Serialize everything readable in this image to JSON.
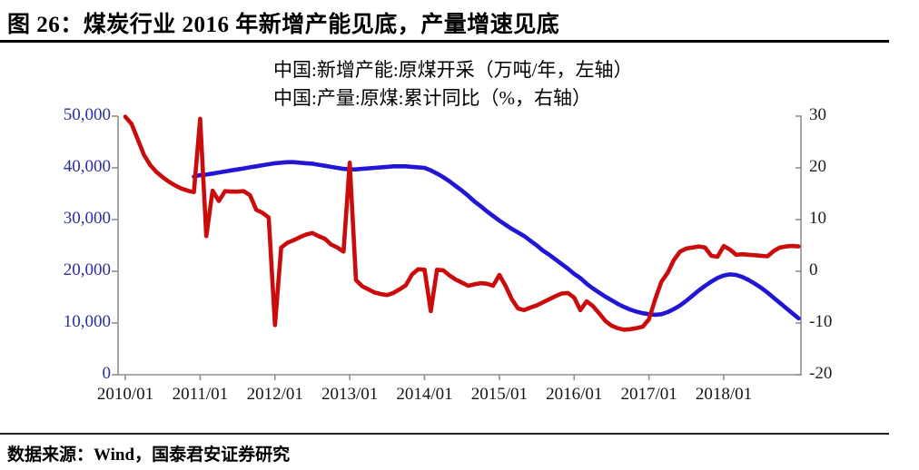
{
  "title": "图 26：煤炭行业 2016 年新增产能见底，产量增速见底",
  "source": "数据来源：Wind，国泰君安证券研究",
  "colors": {
    "capacity_line": "#2215d6",
    "output_line": "#cb0c0c",
    "axis": "#8f8f8f",
    "left_axis_labels": "#2b2f9e",
    "right_axis_labels": "#1c1c1c"
  },
  "legend": [
    {
      "label": "中国:新增产能:原煤开采（万吨/年，左轴）",
      "color": "#2215d6"
    },
    {
      "label": "中国:产量:原煤:累计同比（%，右轴）",
      "color": "#cb0c0c"
    }
  ],
  "chart_data": {
    "type": "line",
    "title": "煤炭行业2016年新增产能见底，产量增速见底",
    "x_unit": "month",
    "x_start": "2010/01",
    "x_end": "2019/01",
    "x_tick_labels": [
      "2010/01",
      "2011/01",
      "2012/01",
      "2013/01",
      "2014/01",
      "2015/01",
      "2016/01",
      "2017/01",
      "2018/01"
    ],
    "left_axis": {
      "min": 0,
      "max": 50000,
      "tick_labels": [
        "50,000",
        "40,000",
        "30,000",
        "20,000",
        "10,000",
        "0"
      ]
    },
    "right_axis": {
      "min": -20,
      "max": 30,
      "tick_labels": [
        "30",
        "20",
        "10",
        "0",
        "-10",
        "-20"
      ]
    },
    "grid": false,
    "legend_position": "top-center",
    "series": [
      {
        "name": "中国:新增产能:原煤开采（万吨/年，左轴）",
        "axis": "left",
        "color": "#2215d6",
        "values": [
          null,
          null,
          null,
          null,
          null,
          null,
          null,
          null,
          null,
          null,
          null,
          38300,
          38600,
          38700,
          38900,
          39100,
          39300,
          39500,
          39700,
          39900,
          40100,
          40300,
          40500,
          40700,
          40900,
          41000,
          41100,
          41100,
          41000,
          40900,
          40800,
          40600,
          40400,
          40200,
          40000,
          39800,
          39700,
          39700,
          39800,
          39900,
          40000,
          40100,
          40200,
          40300,
          40300,
          40300,
          40200,
          40100,
          40000,
          39500,
          38900,
          38200,
          37400,
          36500,
          35600,
          34600,
          33500,
          32600,
          31600,
          30700,
          29800,
          29000,
          28200,
          27500,
          26800,
          25900,
          25000,
          24000,
          23200,
          22300,
          21400,
          20500,
          19500,
          18700,
          17600,
          16700,
          15900,
          15100,
          14400,
          13700,
          13100,
          12600,
          12200,
          11900,
          11700,
          11600,
          11700,
          12100,
          12700,
          13400,
          14300,
          15300,
          16300,
          17200,
          18000,
          18700,
          19200,
          19400,
          19300,
          18900,
          18300,
          17600,
          16800,
          15900,
          14900,
          13900,
          12900,
          11900,
          10900
        ]
      },
      {
        "name": "中国:产量:原煤:累计同比（%，右轴）",
        "axis": "right",
        "color": "#cb0c0c",
        "values": [
          29.9,
          28.5,
          25.5,
          22.5,
          20.5,
          19.2,
          18.2,
          17.3,
          16.6,
          16.0,
          15.6,
          15.3,
          29.5,
          6.8,
          15.6,
          13.6,
          15.5,
          15.4,
          15.4,
          15.5,
          14.7,
          11.9,
          11.3,
          10.4,
          -10.4,
          4.6,
          5.5,
          6.0,
          6.6,
          7.1,
          7.4,
          6.8,
          6.3,
          5.2,
          4.6,
          3.8,
          21.0,
          -1.7,
          -2.9,
          -3.5,
          -4.1,
          -4.4,
          -4.6,
          -4.2,
          -3.5,
          -2.7,
          -0.6,
          0.4,
          0.3,
          -7.7,
          0.3,
          0.2,
          -0.8,
          -1.6,
          -2.2,
          -2.8,
          -2.5,
          -2.3,
          -2.4,
          -2.8,
          -0.7,
          -2.8,
          -5.4,
          -7.2,
          -7.5,
          -7.0,
          -6.6,
          -6.0,
          -5.4,
          -4.8,
          -4.3,
          -4.2,
          -5.1,
          -7.5,
          -5.8,
          -6.7,
          -8.1,
          -9.6,
          -10.5,
          -11.0,
          -11.3,
          -11.2,
          -11.0,
          -10.7,
          -9.3,
          -5.4,
          -2.0,
          -0.3,
          2.2,
          3.8,
          4.4,
          4.6,
          4.8,
          4.6,
          3.0,
          2.8,
          4.9,
          4.2,
          3.2,
          3.3,
          3.2,
          3.1,
          3.0,
          2.9,
          3.9,
          4.6,
          4.8,
          4.9,
          4.8
        ]
      }
    ]
  }
}
